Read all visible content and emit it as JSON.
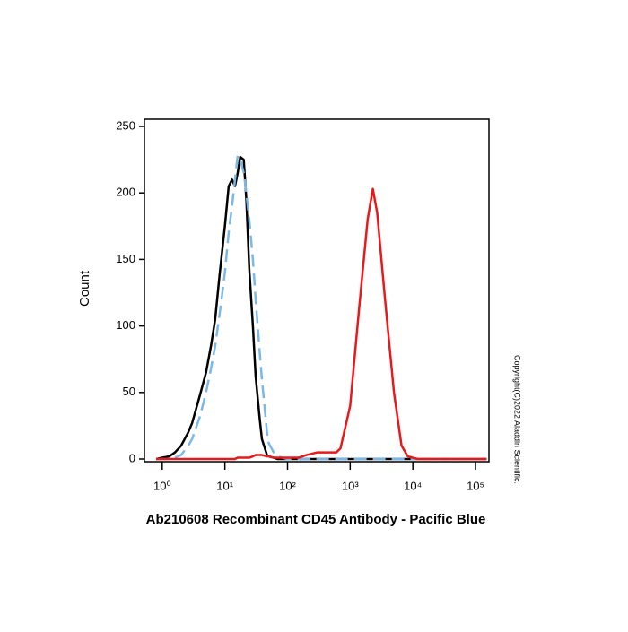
{
  "chart_data": {
    "type": "line",
    "title": "Ab210608 Recombinant CD45 Antibody - Pacific Blue",
    "y_label": "Count",
    "annotation": "Copyright(C)2022 Aladdin Scientific.",
    "x_log": true,
    "x": [
      0.8,
      1,
      1.3,
      1.6,
      2,
      2.6,
      3,
      4,
      5,
      6,
      7,
      8.3,
      10,
      11.5,
      13,
      14.5,
      16,
      17.6,
      20,
      22,
      24.5,
      28,
      31,
      36,
      39,
      47,
      50,
      60,
      70,
      100,
      150,
      200,
      300,
      400,
      600,
      700,
      1000,
      1400,
      1900,
      2300,
      2700,
      3600,
      5000,
      6600,
      8300,
      12000,
      20000,
      50000,
      100000,
      150000
    ],
    "series": [
      {
        "color": "#000000",
        "dashed": false,
        "values": [
          0,
          1,
          2,
          5,
          10,
          20,
          27,
          48,
          65,
          85,
          105,
          140,
          175,
          205,
          210,
          205,
          215,
          227,
          225,
          195,
          143,
          100,
          62,
          30,
          15,
          3,
          2,
          1,
          0,
          0,
          0,
          0,
          0,
          0,
          0,
          0,
          0,
          0,
          0,
          0,
          0,
          0,
          0,
          0,
          0,
          0,
          0,
          0,
          0,
          0
        ]
      },
      {
        "color": "#7ab8e8",
        "dashed": true,
        "values": [
          0,
          0,
          0,
          1,
          3,
          10,
          15,
          32,
          50,
          68,
          85,
          110,
          140,
          170,
          190,
          210,
          228,
          225,
          215,
          200,
          180,
          150,
          120,
          80,
          60,
          20,
          12,
          5,
          2,
          0,
          0,
          0,
          0,
          0,
          0,
          0,
          0,
          0,
          0,
          0,
          0,
          0,
          0,
          0,
          0,
          0,
          0,
          0,
          0,
          0
        ]
      },
      {
        "color": "#e8191b",
        "dashed": false,
        "values": [
          0,
          0,
          0,
          0,
          0,
          0,
          0,
          0,
          0,
          0,
          0,
          0,
          0,
          0,
          0,
          0,
          1,
          1,
          1,
          1,
          1,
          2,
          3,
          3,
          3,
          2,
          2,
          1,
          1,
          1,
          1,
          3,
          5,
          5,
          5,
          8,
          40,
          115,
          180,
          203,
          185,
          120,
          50,
          10,
          2,
          0,
          0,
          0,
          0,
          0
        ]
      }
    ],
    "xlim": [
      0.52,
      164000
    ],
    "xticks": [
      {
        "value": 1,
        "label": "10⁰"
      },
      {
        "value": 10,
        "label": "10¹"
      },
      {
        "value": 100,
        "label": "10²"
      },
      {
        "value": 1000,
        "label": "10³"
      },
      {
        "value": 10000,
        "label": "10⁴"
      },
      {
        "value": 100000,
        "label": "10⁵"
      }
    ],
    "ylim": [
      0,
      250
    ],
    "yticks": [
      0,
      50,
      100,
      150,
      200,
      250
    ],
    "grid": false
  }
}
